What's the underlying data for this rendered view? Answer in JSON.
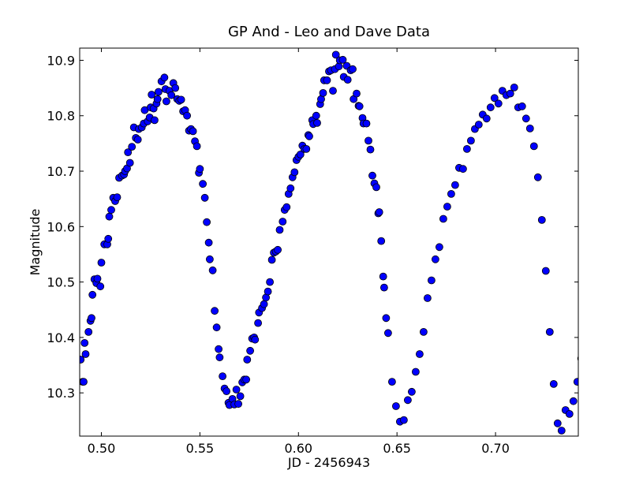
{
  "chart_data": {
    "type": "scatter",
    "title": "GP And - Leo and Dave Data",
    "xlabel": "JD - 2456943",
    "ylabel": "Magnitude",
    "xlim": [
      0.489,
      0.742
    ],
    "ylim": [
      10.922,
      10.222
    ],
    "y_inverted": true,
    "grid": false,
    "legend": "none",
    "marker_color": "#0000ff",
    "marker_edge_color": "#000000",
    "x_ticks": [
      0.5,
      0.55,
      0.6,
      0.65,
      0.7
    ],
    "x_tick_labels": [
      "0.50",
      "0.55",
      "0.60",
      "0.65",
      "0.70"
    ],
    "y_ticks": [
      10.3,
      10.4,
      10.5,
      10.6,
      10.7,
      10.8,
      10.9
    ],
    "y_tick_labels": [
      "10.3",
      "10.4",
      "10.5",
      "10.6",
      "10.7",
      "10.8",
      "10.9"
    ],
    "series": [
      {
        "points": [
          [
            0.4895,
            10.36
          ],
          [
            0.4905,
            10.32
          ],
          [
            0.491,
            10.32
          ],
          [
            0.4915,
            10.39
          ],
          [
            0.492,
            10.37
          ],
          [
            0.4935,
            10.41
          ],
          [
            0.4945,
            10.43
          ],
          [
            0.495,
            10.435
          ],
          [
            0.4955,
            10.477
          ],
          [
            0.4965,
            10.505
          ],
          [
            0.4975,
            10.498
          ],
          [
            0.498,
            10.506
          ],
          [
            0.4995,
            10.492
          ],
          [
            0.5,
            10.535
          ],
          [
            0.5015,
            10.568
          ],
          [
            0.503,
            10.568
          ],
          [
            0.5035,
            10.578
          ],
          [
            0.504,
            10.618
          ],
          [
            0.505,
            10.63
          ],
          [
            0.506,
            10.652
          ],
          [
            0.507,
            10.646
          ],
          [
            0.508,
            10.653
          ],
          [
            0.509,
            10.688
          ],
          [
            0.5105,
            10.692
          ],
          [
            0.5115,
            10.694
          ],
          [
            0.512,
            10.7
          ],
          [
            0.513,
            10.705
          ],
          [
            0.5135,
            10.734
          ],
          [
            0.5145,
            10.715
          ],
          [
            0.5155,
            10.744
          ],
          [
            0.5165,
            10.779
          ],
          [
            0.5175,
            10.76
          ],
          [
            0.5185,
            10.757
          ],
          [
            0.519,
            10.776
          ],
          [
            0.5205,
            10.779
          ],
          [
            0.5215,
            10.786
          ],
          [
            0.522,
            10.81
          ],
          [
            0.5235,
            10.79
          ],
          [
            0.5245,
            10.797
          ],
          [
            0.525,
            10.815
          ],
          [
            0.5255,
            10.838
          ],
          [
            0.5265,
            10.813
          ],
          [
            0.527,
            10.792
          ],
          [
            0.528,
            10.822
          ],
          [
            0.5285,
            10.83
          ],
          [
            0.529,
            10.843
          ],
          [
            0.5305,
            10.862
          ],
          [
            0.532,
            10.869
          ],
          [
            0.5325,
            10.848
          ],
          [
            0.533,
            10.826
          ],
          [
            0.5345,
            10.845
          ],
          [
            0.5355,
            10.837
          ],
          [
            0.5365,
            10.859
          ],
          [
            0.5375,
            10.85
          ],
          [
            0.5385,
            10.83
          ],
          [
            0.5395,
            10.827
          ],
          [
            0.5405,
            10.829
          ],
          [
            0.5415,
            10.808
          ],
          [
            0.5425,
            10.81
          ],
          [
            0.5435,
            10.8
          ],
          [
            0.5445,
            10.773
          ],
          [
            0.5455,
            10.776
          ],
          [
            0.5465,
            10.772
          ],
          [
            0.5475,
            10.754
          ],
          [
            0.5485,
            10.745
          ],
          [
            0.5495,
            10.697
          ],
          [
            0.55,
            10.704
          ],
          [
            0.5515,
            10.677
          ],
          [
            0.5525,
            10.652
          ],
          [
            0.5535,
            10.608
          ],
          [
            0.5545,
            10.571
          ],
          [
            0.555,
            10.541
          ],
          [
            0.5565,
            10.521
          ],
          [
            0.5575,
            10.448
          ],
          [
            0.5585,
            10.418
          ],
          [
            0.5595,
            10.379
          ],
          [
            0.56,
            10.364
          ],
          [
            0.5615,
            10.33
          ],
          [
            0.5625,
            10.308
          ],
          [
            0.5635,
            10.303
          ],
          [
            0.5645,
            10.282
          ],
          [
            0.565,
            10.278
          ],
          [
            0.5665,
            10.289
          ],
          [
            0.5675,
            10.279
          ],
          [
            0.5685,
            10.306
          ],
          [
            0.5695,
            10.28
          ],
          [
            0.5705,
            10.294
          ],
          [
            0.5715,
            10.319
          ],
          [
            0.5725,
            10.324
          ],
          [
            0.5735,
            10.324
          ],
          [
            0.574,
            10.36
          ],
          [
            0.5755,
            10.376
          ],
          [
            0.5765,
            10.398
          ],
          [
            0.5775,
            10.4
          ],
          [
            0.578,
            10.396
          ],
          [
            0.5795,
            10.426
          ],
          [
            0.58,
            10.445
          ],
          [
            0.5815,
            10.453
          ],
          [
            0.5825,
            10.46
          ],
          [
            0.5835,
            10.472
          ],
          [
            0.5845,
            10.483
          ],
          [
            0.5855,
            10.5
          ],
          [
            0.5865,
            10.54
          ],
          [
            0.5875,
            10.553
          ],
          [
            0.5885,
            10.555
          ],
          [
            0.5895,
            10.558
          ],
          [
            0.5905,
            10.594
          ],
          [
            0.592,
            10.609
          ],
          [
            0.593,
            10.63
          ],
          [
            0.594,
            10.635
          ],
          [
            0.595,
            10.659
          ],
          [
            0.596,
            10.669
          ],
          [
            0.597,
            10.689
          ],
          [
            0.598,
            10.698
          ],
          [
            0.599,
            10.72
          ],
          [
            0.6,
            10.726
          ],
          [
            0.601,
            10.73
          ],
          [
            0.602,
            10.746
          ],
          [
            0.603,
            10.74
          ],
          [
            0.604,
            10.74
          ],
          [
            0.605,
            10.765
          ],
          [
            0.6055,
            10.763
          ],
          [
            0.607,
            10.792
          ],
          [
            0.6075,
            10.785
          ],
          [
            0.609,
            10.8
          ],
          [
            0.6095,
            10.787
          ],
          [
            0.611,
            10.821
          ],
          [
            0.6115,
            10.83
          ],
          [
            0.6125,
            10.841
          ],
          [
            0.613,
            10.864
          ],
          [
            0.6145,
            10.864
          ],
          [
            0.6155,
            10.88
          ],
          [
            0.6165,
            10.882
          ],
          [
            0.6175,
            10.845
          ],
          [
            0.6185,
            10.884
          ],
          [
            0.619,
            10.91
          ],
          [
            0.6205,
            10.889
          ],
          [
            0.621,
            10.9
          ],
          [
            0.6225,
            10.901
          ],
          [
            0.623,
            10.87
          ],
          [
            0.6245,
            10.89
          ],
          [
            0.625,
            10.865
          ],
          [
            0.6265,
            10.882
          ],
          [
            0.6275,
            10.884
          ],
          [
            0.628,
            10.83
          ],
          [
            0.6295,
            10.84
          ],
          [
            0.6305,
            10.818
          ],
          [
            0.631,
            10.817
          ],
          [
            0.6325,
            10.796
          ],
          [
            0.633,
            10.786
          ],
          [
            0.6345,
            10.786
          ],
          [
            0.6355,
            10.755
          ],
          [
            0.6365,
            10.739
          ],
          [
            0.6375,
            10.692
          ],
          [
            0.6385,
            10.678
          ],
          [
            0.6395,
            10.671
          ],
          [
            0.6405,
            10.624
          ],
          [
            0.641,
            10.626
          ],
          [
            0.642,
            10.574
          ],
          [
            0.643,
            10.51
          ],
          [
            0.6435,
            10.49
          ],
          [
            0.6445,
            10.435
          ],
          [
            0.6455,
            10.408
          ],
          [
            0.6475,
            10.32
          ],
          [
            0.6495,
            10.276
          ],
          [
            0.6515,
            10.248
          ],
          [
            0.6535,
            10.251
          ],
          [
            0.6555,
            10.287
          ],
          [
            0.6575,
            10.302
          ],
          [
            0.6595,
            10.338
          ],
          [
            0.6615,
            10.37
          ],
          [
            0.6635,
            10.41
          ],
          [
            0.6655,
            10.471
          ],
          [
            0.6675,
            10.503
          ],
          [
            0.6695,
            10.541
          ],
          [
            0.6715,
            10.563
          ],
          [
            0.6735,
            10.614
          ],
          [
            0.6755,
            10.636
          ],
          [
            0.6775,
            10.659
          ],
          [
            0.6795,
            10.675
          ],
          [
            0.6815,
            10.706
          ],
          [
            0.6835,
            10.704
          ],
          [
            0.6855,
            10.74
          ],
          [
            0.6875,
            10.755
          ],
          [
            0.6895,
            10.776
          ],
          [
            0.6915,
            10.784
          ],
          [
            0.6935,
            10.802
          ],
          [
            0.6955,
            10.795
          ],
          [
            0.6975,
            10.815
          ],
          [
            0.6995,
            10.832
          ],
          [
            0.7015,
            10.822
          ],
          [
            0.7035,
            10.845
          ],
          [
            0.7055,
            10.837
          ],
          [
            0.7075,
            10.84
          ],
          [
            0.7095,
            10.851
          ],
          [
            0.7115,
            10.815
          ],
          [
            0.7135,
            10.817
          ],
          [
            0.7155,
            10.795
          ],
          [
            0.7175,
            10.777
          ],
          [
            0.7195,
            10.745
          ],
          [
            0.7215,
            10.689
          ],
          [
            0.7235,
            10.612
          ],
          [
            0.7255,
            10.52
          ],
          [
            0.7275,
            10.41
          ],
          [
            0.7295,
            10.316
          ],
          [
            0.7315,
            10.245
          ],
          [
            0.7335,
            10.232
          ],
          [
            0.7355,
            10.269
          ],
          [
            0.7375,
            10.262
          ],
          [
            0.7395,
            10.285
          ],
          [
            0.7415,
            10.32
          ],
          [
            0.7435,
            10.362
          ]
        ]
      }
    ]
  }
}
